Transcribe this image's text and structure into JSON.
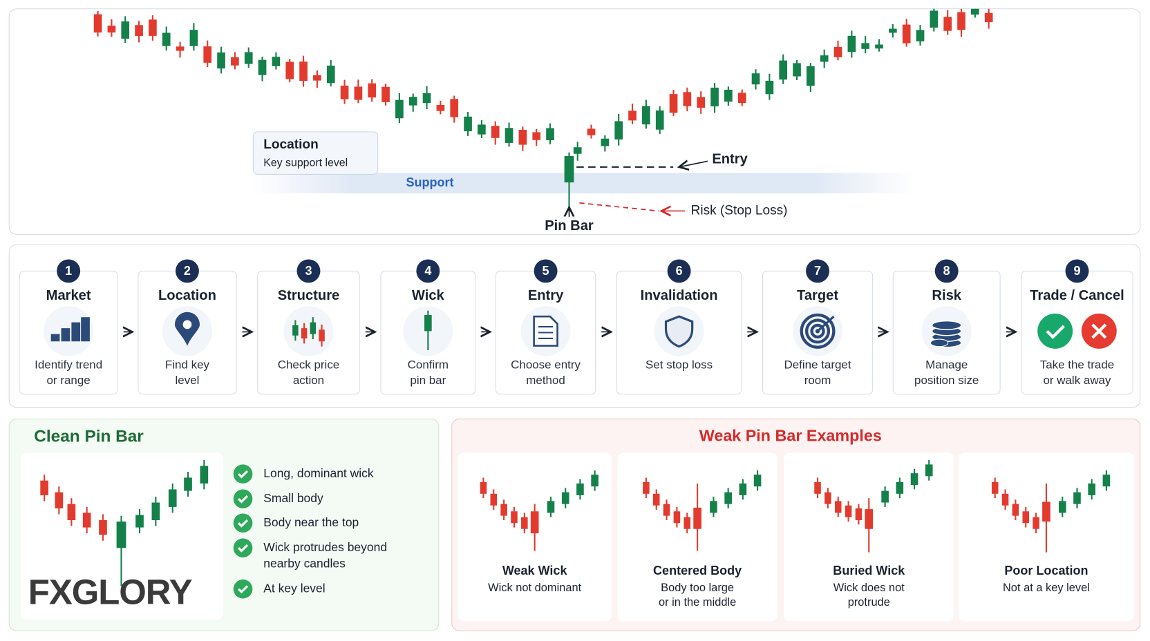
{
  "chart_panel": {
    "location_box": {
      "title": "Location",
      "subtitle": "Key support level"
    },
    "support_label": "Support",
    "entry_label": "Entry",
    "risk_label": "Risk (Stop Loss)",
    "pin_bar_label": "Pin Bar"
  },
  "steps": [
    {
      "number": 1,
      "title": "Market",
      "description": [
        "Identify trend",
        "or range"
      ]
    },
    {
      "number": 2,
      "title": "Location",
      "description": [
        "Find key",
        "level"
      ]
    },
    {
      "number": 3,
      "title": "Structure",
      "description": [
        "Check price",
        "action"
      ]
    },
    {
      "number": 4,
      "title": "Wick",
      "description": [
        "Confirm",
        "pin bar"
      ]
    },
    {
      "number": 5,
      "title": "Entry",
      "description": [
        "Choose entry",
        "method"
      ]
    },
    {
      "number": 6,
      "title": "Invalidation",
      "description": [
        "Set stop loss"
      ]
    },
    {
      "number": 7,
      "title": "Target",
      "description": [
        "Define target",
        "room"
      ]
    },
    {
      "number": 8,
      "title": "Risk",
      "description": [
        "Manage",
        "position size"
      ]
    },
    {
      "number": 9,
      "title": "Trade / Cancel",
      "description": [
        "Take the trade",
        "or walk away"
      ]
    }
  ],
  "clean_pin_bar": {
    "title": "Clean Pin Bar",
    "checklist": [
      [
        "Long, dominant wick"
      ],
      [
        "Small body"
      ],
      [
        "Body near the top"
      ],
      [
        "Wick protrudes beyond",
        "nearby candles"
      ],
      [
        "At key level"
      ]
    ],
    "logo": "FXGLORY"
  },
  "weak_examples": {
    "title": "Weak Pin Bar Examples",
    "items": [
      {
        "title": "Weak Wick",
        "description": [
          "Wick not dominant"
        ]
      },
      {
        "title": "Centered Body",
        "description": [
          "Body too large",
          "or in the middle"
        ]
      },
      {
        "title": "Buried Wick",
        "description": [
          "Wick does not",
          "protrude"
        ]
      },
      {
        "title": "Poor Location",
        "description": [
          "Not at a key level"
        ]
      }
    ]
  }
}
